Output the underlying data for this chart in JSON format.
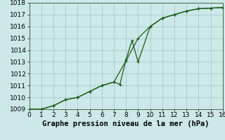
{
  "title": "Graphe pression niveau de la mer (hPa)",
  "background_color": "#cce8e8",
  "grid_color": "#aacccc",
  "line_color": "#1a5c1a",
  "x_line1": [
    0,
    1,
    2,
    3,
    4,
    5,
    6,
    7,
    8,
    9,
    10,
    11,
    12,
    13,
    14,
    15,
    16
  ],
  "y_line1": [
    1009.0,
    1009.0,
    1009.3,
    1009.8,
    1010.0,
    1010.5,
    1011.0,
    1011.3,
    1013.1,
    1015.0,
    1016.0,
    1016.7,
    1017.0,
    1017.3,
    1017.5,
    1017.55,
    1017.6
  ],
  "x_line2": [
    0,
    1,
    2,
    3,
    4,
    5,
    6,
    7,
    7.5,
    8,
    8.5,
    9,
    10,
    11,
    12,
    13,
    14,
    15,
    16
  ],
  "y_line2": [
    1009.0,
    1009.0,
    1009.3,
    1009.8,
    1010.0,
    1010.5,
    1011.0,
    1011.3,
    1011.1,
    1013.2,
    1014.8,
    1013.0,
    1016.0,
    1016.7,
    1017.0,
    1017.3,
    1017.5,
    1017.55,
    1017.6
  ],
  "xlim": [
    0,
    16
  ],
  "ylim": [
    1009,
    1018
  ],
  "xticks": [
    0,
    1,
    2,
    3,
    4,
    5,
    6,
    7,
    8,
    9,
    10,
    11,
    12,
    13,
    14,
    15,
    16
  ],
  "yticks": [
    1009,
    1010,
    1011,
    1012,
    1013,
    1014,
    1015,
    1016,
    1017,
    1018
  ],
  "title_fontsize": 7.5,
  "tick_fontsize": 6.5
}
